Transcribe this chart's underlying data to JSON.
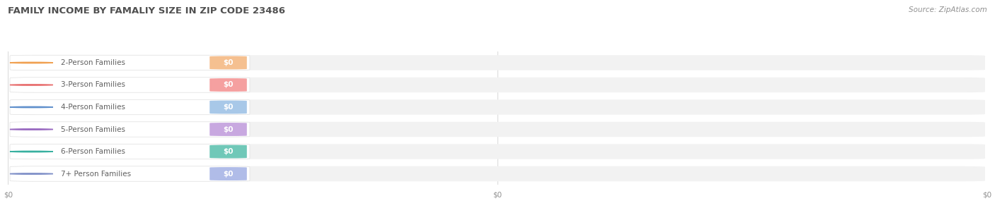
{
  "title": "FAMILY INCOME BY FAMALIY SIZE IN ZIP CODE 23486",
  "source": "Source: ZipAtlas.com",
  "categories": [
    "2-Person Families",
    "3-Person Families",
    "4-Person Families",
    "5-Person Families",
    "6-Person Families",
    "7+ Person Families"
  ],
  "values": [
    0,
    0,
    0,
    0,
    0,
    0
  ],
  "bar_colors": [
    "#f5c090",
    "#f5a0a0",
    "#a8c8e8",
    "#c8a8e0",
    "#70c8b8",
    "#b0bce8"
  ],
  "circle_colors": [
    "#f0a050",
    "#e87070",
    "#6090cc",
    "#9868c0",
    "#38b0a0",
    "#8090c8"
  ],
  "value_labels": [
    "$0",
    "$0",
    "$0",
    "$0",
    "$0",
    "$0"
  ],
  "background_color": "#ffffff",
  "bar_bg_color": "#f2f2f2",
  "title_color": "#505050",
  "label_color": "#606060",
  "x_tick_labels": [
    "$0",
    "$0",
    "$0"
  ],
  "x_tick_positions": [
    0.0,
    0.5,
    1.0
  ],
  "xlim": [
    0,
    1.0
  ],
  "title_fontsize": 9.5,
  "label_fontsize": 7.5,
  "value_fontsize": 7.5,
  "source_fontsize": 7.5
}
